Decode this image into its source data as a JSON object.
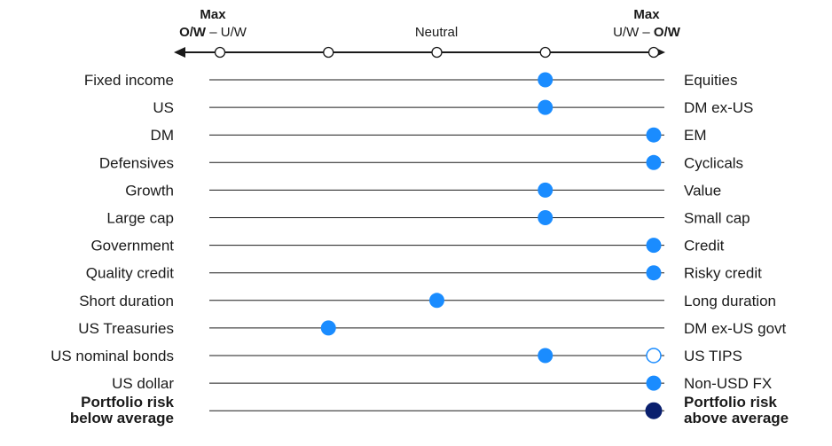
{
  "chart_data": {
    "type": "scatter",
    "scale": {
      "positions": [
        -2,
        -1,
        0,
        1,
        2
      ],
      "left_header": {
        "line1": "Max",
        "line2_bold": "O/W",
        "line2_rest": " – U/W"
      },
      "center_label": "Neutral",
      "right_header": {
        "line1": "Max",
        "line2_rest": "U/W – ",
        "line2_bold": "O/W"
      }
    },
    "rows": [
      {
        "left": "Fixed income",
        "right": "Equities",
        "value": 1,
        "style": "filled"
      },
      {
        "left": "US",
        "right": "DM ex-US",
        "value": 1,
        "style": "filled"
      },
      {
        "left": "DM",
        "right": "EM",
        "value": 2,
        "style": "filled"
      },
      {
        "left": "Defensives",
        "right": "Cyclicals",
        "value": 2,
        "style": "filled"
      },
      {
        "left": "Growth",
        "right": "Value",
        "value": 1,
        "style": "filled"
      },
      {
        "left": "Large cap",
        "right": "Small cap",
        "value": 1,
        "style": "filled"
      },
      {
        "left": "Government",
        "right": "Credit",
        "value": 2,
        "style": "filled"
      },
      {
        "left": "Quality credit",
        "right": "Risky credit",
        "value": 2,
        "style": "filled"
      },
      {
        "left": "Short duration",
        "right": "Long duration",
        "value": 0,
        "style": "filled"
      },
      {
        "left": "US Treasuries",
        "right": "DM ex-US govt",
        "value": -1,
        "style": "filled"
      },
      {
        "left": "US nominal bonds",
        "right": "US TIPS",
        "value": 1,
        "style": "filled",
        "extra_marker": {
          "value": 2,
          "style": "hollow"
        }
      },
      {
        "left": "US dollar",
        "right": "Non-USD FX",
        "value": 2,
        "style": "filled"
      },
      {
        "left_lines": [
          "Portfolio risk",
          "below average"
        ],
        "right_lines": [
          "Portfolio risk",
          "above average"
        ],
        "value": 2,
        "style": "dark",
        "bold": true
      }
    ],
    "colors": {
      "filled": "#1a8cff",
      "dark": "#0a1f6e",
      "line": "#1a1a1a",
      "text": "#1a1a1a"
    }
  }
}
